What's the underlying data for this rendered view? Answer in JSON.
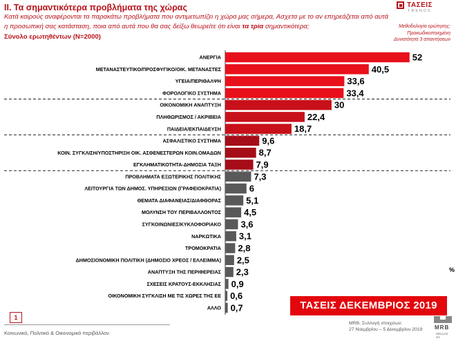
{
  "header": {
    "title": "ΙΙ. Τα σημαντικότερα προβλήματα της χώρας",
    "question_part1": "Κατά καιρούς αναφέρονται τα παρακάτω προβλήματα που αντιμετωπίζει η χώρα μας σήμερα, Ασχετα με το αν επηρεάζεται από αυτά η προσωπική σας κατάσταση, ποια από αυτά που θα σας δείξω θεωρείτε ότι είναι ",
    "question_bold": "τα τρία",
    "question_part2": " σημαντικότερα;",
    "sample": "Σύνολο ερωτηθέντων (N=2000)",
    "method_line1": "Μεθοδολογία ερώτησης:",
    "method_line2": "Προκωδικοποιημένη",
    "method_line3": "Δυνατότητα 3 απαντήσεων"
  },
  "logo": {
    "name": "ΤΑΣΕΙΣ",
    "sub": "TRENDS"
  },
  "chart_data": {
    "type": "bar",
    "orientation": "horizontal",
    "categories": [
      "ΑΝΕΡΓΙΑ",
      "ΜΕΤΑΝΑΣΤΕΥΤΙΚΟ/ΠΡΟΣΦΥΓΙΚΟ/ΟΙΚ. ΜΕΤΑΝΑΣΤΕΣ",
      "ΥΓΕΙΑ/ΠΕΡΙΘΑΛΨΗ",
      "ΦΟΡΟΛΟΓΙΚΟ ΣΥΣΤΗΜΑ",
      "ΟΙΚΟΝΟΜΙΚΗ ΑΝΑΠΤΥΞΗ",
      "ΠΛΗΘΩΡΙΣΜΟΣ / ΑΚΡΙΒΕΙΑ",
      "ΠΑΙΔΕΙΑ/ΕΚΠΑΙΔΕΥΣΗ",
      "ΑΣΦΑΛΙΣΤΙΚΟ ΣΥΣΤΗΜΑ",
      "ΚΟΙΝ. ΣΥΓΚΛΙΣΗ/ΥΠΟΣΤΗΡΙΞΗ ΟΙΚ. ΑΣΘΕΝΕΣΤΕΡΩΝ ΚΟΙΝ.ΟΜΑΔΩΝ",
      "ΕΓΚΛΗΜΑΤΙΚΟΤΗΤΑ-ΔΗΜΟΣΙΑ ΤΑΞΗ",
      "ΠΡΟΒΛΗΜΑΤΑ ΕΞΩΤΕΡΙΚΗΣ ΠΟΛΙΤΙΚΗΣ",
      "ΛΕΙΤΟΥΡΓΙΑ ΤΩΝ ΔΗΜΟΣ. ΥΠΗΡΕΣΙΩΝ (ΓΡΑΦΕΙΟΚΡΑΤΙΑ)",
      "ΘΕΜΑΤΑ ΔΙΑΦΑΝΕΙΑΣ/ΔΙΑΦΘΟΡΑΣ",
      "ΜΟΛΥΝΣΗ ΤΟΥ ΠΕΡΙΒΑΛΛΟΝΤΟΣ",
      "ΣΥΓΚΟΙΝΩΝΙΕΣ/ΚΥΚΛΟΦΟΡΙΑΚΟ",
      "ΝΑΡΚΩΤΙΚΑ",
      "ΤΡΟΜΟΚΡΑΤΙΑ",
      "ΔΗΜΟΣΙΟΝΟΜΙΚΗ ΠΟΛΙΤΙΚΗ (ΔΗΜΟΣΙΟ ΧΡΕΟΣ / ΕΛΛΕΙΜΜΑ)",
      "ΑΝΑΠΤΥΞΗ ΤΗΣ ΠΕΡΙΦΕΡΕΙΑΣ",
      "ΣΧΕΣΕΙΣ ΚΡΑΤΟΥΣ-ΕΚΚΛΗΣΙΑΣ",
      "ΟΙΚΟΝΟΜΙΚΗ ΣΥΓΚΛΙΣΗ ΜΕ ΤΙΣ ΧΩΡΕΣ ΤΗΣ ΕΕ",
      "ΑΛΛΟ"
    ],
    "values": [
      52,
      40.5,
      33.6,
      33.4,
      30,
      22.4,
      18.7,
      9.6,
      8.7,
      7.9,
      7.3,
      6,
      5.1,
      4.5,
      3.6,
      3.1,
      2.8,
      2.5,
      2.3,
      0.9,
      0.6,
      0.7
    ],
    "labels": [
      "52",
      "40,5",
      "33,6",
      "33,4",
      "30",
      "22,4",
      "18,7",
      "9,6",
      "8,7",
      "7,9",
      "7,3",
      "6",
      "5,1",
      "4,5",
      "3,6",
      "3,1",
      "2,8",
      "2,5",
      "2,3",
      "0,9",
      "0,6",
      "0,7"
    ],
    "group_colors": [
      "#e8101a",
      "#c8101a",
      "#a50d18",
      "#595959"
    ],
    "groups": [
      0,
      0,
      0,
      0,
      1,
      1,
      1,
      2,
      2,
      2,
      3,
      3,
      3,
      3,
      3,
      3,
      3,
      3,
      3,
      3,
      3,
      3
    ],
    "group_separators_after": [
      3,
      6,
      9
    ],
    "unit": "%",
    "xlim": [
      0,
      60
    ],
    "grid": false,
    "legend": "none"
  },
  "banner": "ΤΑΣΕΙΣ ΔΕΚΕΜΒΡΙΟΣ 2019",
  "footer": {
    "page": "1",
    "text": "Κοινωνικό, Πολιτικό & Οικονομικό περιβάλλον",
    "fieldwork_line1": "MRB, Συλλογή στοιχείων:",
    "fieldwork_line2": "27 Νοεμβρίου – 5 Δεκεμβρίου 2019",
    "mrb_name": "MRB",
    "mrb_sub": "HELLAS SA"
  }
}
